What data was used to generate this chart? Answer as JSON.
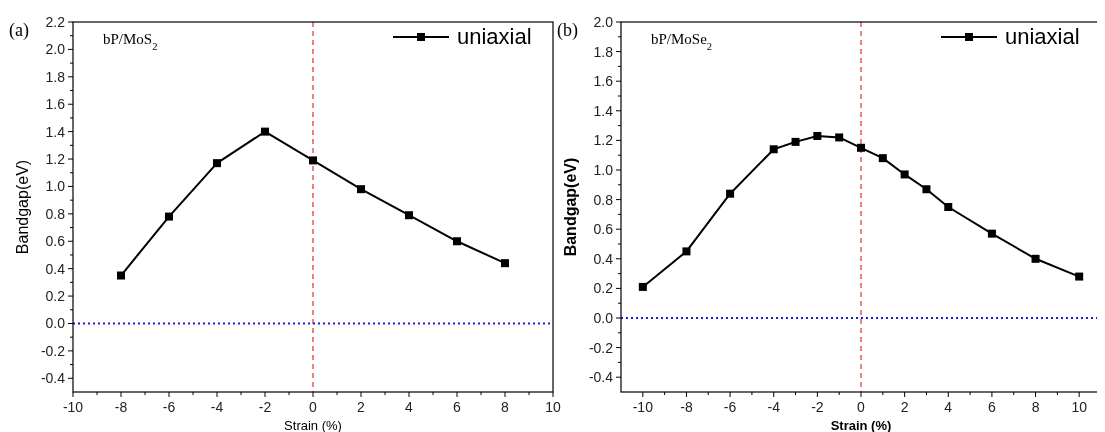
{
  "chart_data": [
    {
      "type": "line",
      "xlabel": "Strain (%)",
      "ylabel": "Bandgap(eV)",
      "x": [
        -8,
        -6,
        -4,
        -2,
        0,
        2,
        4,
        6,
        8
      ],
      "series": [
        {
          "name": "uniaxial",
          "color": "#000000",
          "values": [
            0.35,
            0.78,
            1.17,
            1.4,
            1.19,
            0.98,
            0.79,
            0.6,
            0.44
          ]
        }
      ],
      "xlim": [
        -10,
        10
      ],
      "xticks": [
        -10,
        -8,
        -6,
        -4,
        -2,
        0,
        2,
        4,
        6,
        8,
        10
      ],
      "ylim": [
        -0.5,
        2.2
      ],
      "yticks": [
        {
          "value": -0.4,
          "label": "-0.4"
        },
        {
          "value": -0.2,
          "label": "-0.2"
        },
        {
          "value": 0,
          "label": "0.0"
        },
        {
          "value": 0.2,
          "label": "0.2"
        },
        {
          "value": 0.4,
          "label": "0.4"
        },
        {
          "value": 0.6,
          "label": "0.6"
        },
        {
          "value": 0.8,
          "label": "0.8"
        },
        {
          "value": 1,
          "label": "1.0"
        },
        {
          "value": 1.2,
          "label": "1.2"
        },
        {
          "value": 1.4,
          "label": "1.4"
        },
        {
          "value": 1.6,
          "label": "1.6"
        },
        {
          "value": 1.8,
          "label": "1.8"
        },
        {
          "value": 2,
          "label": "2.0"
        },
        {
          "value": 2.2,
          "label": "2.2"
        }
      ],
      "ref_lines": [
        {
          "axis": "x",
          "value": 0,
          "color": "#e03030",
          "line_style": "dashed"
        },
        {
          "axis": "y",
          "value": 0,
          "color": "#1a1ae0",
          "line_style": "dotted"
        }
      ],
      "annotations": [
        "(a)",
        "bP/MoS$_{2}$"
      ],
      "marker": "square",
      "line_style": "solid",
      "legend": "top right",
      "grid": false
    },
    {
      "type": "line",
      "xlabel": "Strain (%)",
      "ylabel": "Bandgap(eV)",
      "x": [
        -10,
        -8,
        -6,
        -4,
        -3,
        -2,
        -1,
        0,
        1,
        2,
        3,
        4,
        6,
        8,
        10
      ],
      "series": [
        {
          "name": "uniaxial",
          "color": "#000000",
          "values": [
            0.21,
            0.45,
            0.84,
            1.14,
            1.19,
            1.23,
            1.22,
            1.15,
            1.08,
            0.97,
            0.87,
            0.75,
            0.57,
            0.4,
            0.28
          ]
        }
      ],
      "xlim": [
        -11,
        11
      ],
      "xticks": [
        -10,
        -8,
        -6,
        -4,
        -2,
        0,
        2,
        4,
        6,
        8,
        10
      ],
      "ylim": [
        -0.5,
        2.0
      ],
      "yticks": [
        {
          "value": -0.4,
          "label": "-0.4"
        },
        {
          "value": -0.2,
          "label": "-0.2"
        },
        {
          "value": 0,
          "label": "0.0"
        },
        {
          "value": 0.2,
          "label": "0.2"
        },
        {
          "value": 0.4,
          "label": "0.4"
        },
        {
          "value": 0.6,
          "label": "0.6"
        },
        {
          "value": 0.8,
          "label": "0.8"
        },
        {
          "value": 1,
          "label": "1.0"
        },
        {
          "value": 1.2,
          "label": "1.2"
        },
        {
          "value": 1.4,
          "label": "1.4"
        },
        {
          "value": 1.6,
          "label": "1.6"
        },
        {
          "value": 1.8,
          "label": "1.8"
        },
        {
          "value": 2,
          "label": "2.0"
        }
      ],
      "ref_lines": [
        {
          "axis": "x",
          "value": 0,
          "color": "#e03030",
          "line_style": "dashed"
        },
        {
          "axis": "y",
          "value": 0,
          "color": "#1a1ae0",
          "line_style": "dotted"
        }
      ],
      "annotations": [
        "(b)",
        "bP/MoSe$_{2}$"
      ],
      "marker": "square",
      "line_style": "solid",
      "legend": "top right",
      "grid": false
    }
  ]
}
